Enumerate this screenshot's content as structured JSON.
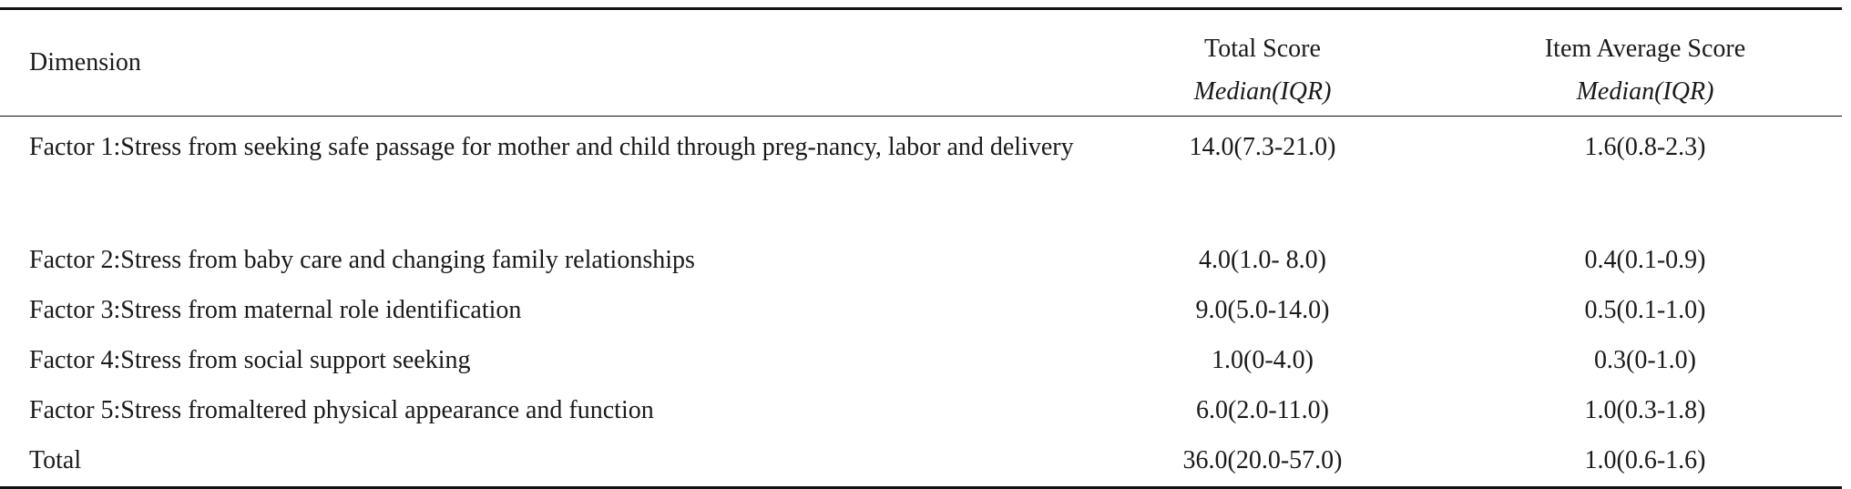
{
  "table": {
    "headers": {
      "dimension": "Dimension",
      "total_score": "Total Score",
      "total_score_sub": "Median(IQR)",
      "item_avg": "Item Average Score",
      "item_avg_sub": "Median(IQR)"
    },
    "rows": [
      {
        "dimension": "Factor 1:Stress from seeking safe passage for mother and child through preg-nancy, labor and delivery",
        "total": "14.0(7.3-21.0)",
        "avg": "1.6(0.8-2.3)"
      },
      {
        "dimension": "Factor 2:Stress from baby care and changing family relationships",
        "total": "4.0(1.0- 8.0)",
        "avg": "0.4(0.1-0.9)"
      },
      {
        "dimension": "Factor 3:Stress from maternal role identification",
        "total": "9.0(5.0-14.0)",
        "avg": "0.5(0.1-1.0)"
      },
      {
        "dimension": "Factor 4:Stress from social support seeking",
        "total": "1.0(0-4.0)",
        "avg": "0.3(0-1.0)"
      },
      {
        "dimension": "Factor 5:Stress fromaltered physical appearance and function",
        "total": "6.0(2.0-11.0)",
        "avg": "1.0(0.3-1.8)"
      },
      {
        "dimension": "Total",
        "total": "36.0(20.0-57.0)",
        "avg": "1.0(0.6-1.6)"
      }
    ]
  }
}
